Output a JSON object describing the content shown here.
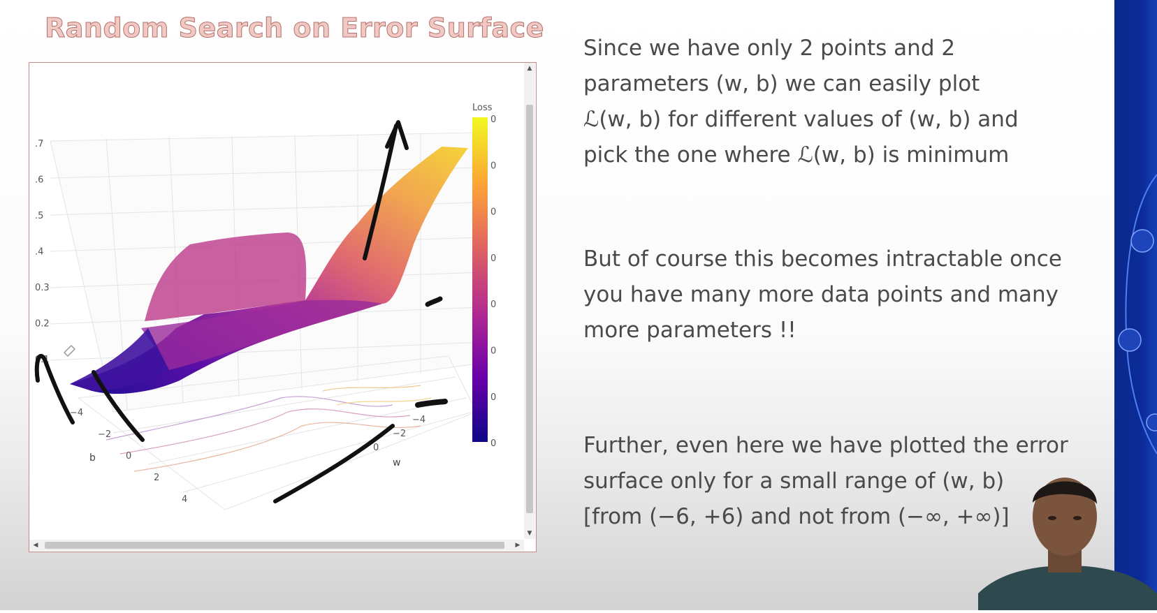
{
  "slide": {
    "title": "Random Search on Error Surface",
    "paragraphs": [
      "Since we have only 2 points and 2\nparameters (w, b) we can easily plot\nℒ(w, b) for different values of (w, b) and\npick the one where ℒ(w, b) is minimum",
      "But of course this becomes intractable once\nyou have many more data points and many\nmore parameters !!",
      "Further, even here we have plotted the error\nsurface only for a small range of (w, b)\n[from (−6, +6) and not from (−∞, +∞)]"
    ]
  },
  "chart_data": {
    "type": "surface",
    "z_ticks": [
      ".7",
      ".6",
      ".5",
      ".4",
      "0.3",
      "0.2",
      "0.1"
    ],
    "b_ticks": [
      "−4",
      "−2",
      "0",
      "2",
      "4"
    ],
    "b_label": "b",
    "w_ticks": [
      "−4",
      "−2",
      "0"
    ],
    "w_label": "w",
    "colorbar": {
      "title": "Loss",
      "tick_labels": [
        "0",
        "0",
        "0",
        "0",
        "0",
        "0",
        "0",
        "0"
      ],
      "colors": [
        "#f0f921",
        "#fca636",
        "#e16462",
        "#b12a90",
        "#6a00a8",
        "#0d0887"
      ]
    },
    "colors": {
      "surface_low": "#2a1a9a",
      "surface_mid": "#b2399a",
      "surface_high": "#f3c845",
      "annotation_ink": "#111111",
      "title": "#f1c9c4"
    }
  }
}
